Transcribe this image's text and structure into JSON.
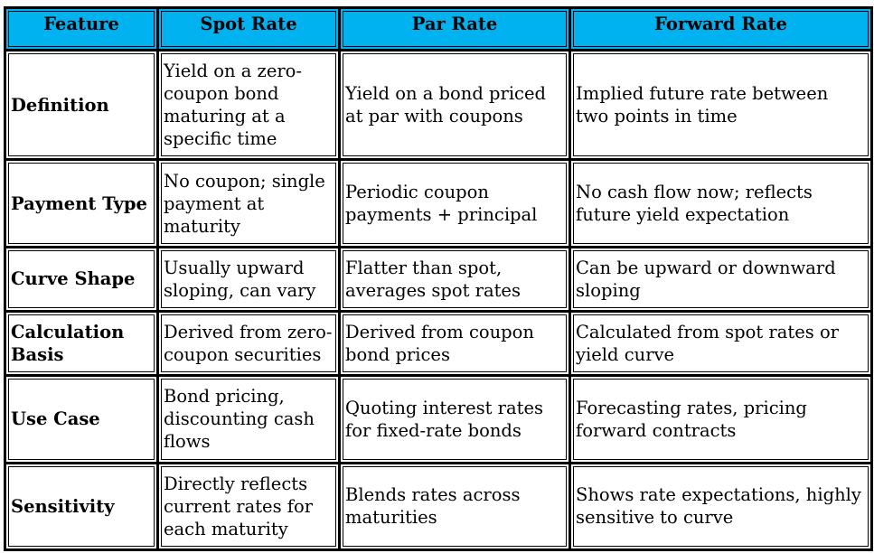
{
  "table": {
    "headers": [
      "Feature",
      "Spot Rate",
      "Par Rate",
      "Forward Rate"
    ],
    "rows": [
      {
        "feature": "Definition",
        "spot": "Yield on a zero-coupon bond maturing at a specific time",
        "par": "Yield on a bond priced at par with coupons",
        "forward": "Implied future rate between two points in time"
      },
      {
        "feature": "Payment Type",
        "spot": "No coupon; single payment at maturity",
        "par": "Periodic coupon payments + principal",
        "forward": "No cash flow now; reflects future yield expectation"
      },
      {
        "feature": "Curve Shape",
        "spot": "Usually upward sloping, can vary",
        "par": "Flatter than spot, averages spot rates",
        "forward": "Can be upward or downward sloping"
      },
      {
        "feature": "Calculation Basis",
        "spot": "Derived from zero-coupon securities",
        "par": "Derived from coupon bond prices",
        "forward": "Calculated from spot rates or yield curve"
      },
      {
        "feature": "Use Case",
        "spot": "Bond pricing, discounting cash flows",
        "par": "Quoting interest rates for fixed-rate bonds",
        "forward": "Forecasting rates, pricing forward contracts"
      },
      {
        "feature": "Sensitivity",
        "spot": "Directly reflects current rates for each maturity",
        "par": "Blends rates across maturities",
        "forward": "Shows rate expectations, highly sensitive to curve"
      }
    ]
  },
  "colors": {
    "header_bg": "#00b3f0",
    "border": "#000000",
    "cell_bg": "#ffffff"
  }
}
